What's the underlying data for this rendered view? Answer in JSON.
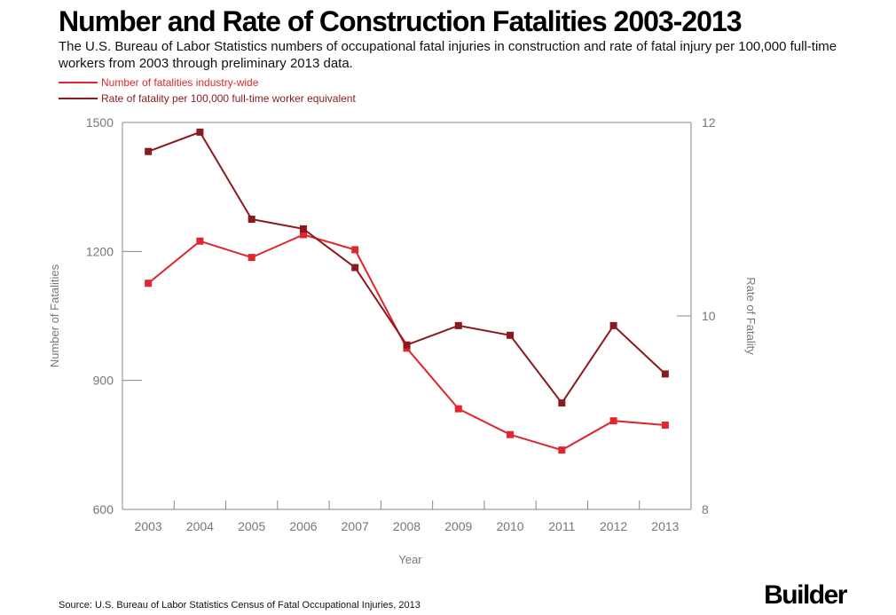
{
  "header": {
    "title": "Number and Rate of Construction Fatalities 2003-2013",
    "subtitle": "The U.S. Bureau of Labor Statistics numbers of occupational fatal injuries in construction and rate of fatal injury per 100,000 full-time workers from 2003 through preliminary 2013 data."
  },
  "footer": {
    "source": "Source: U.S. Bureau of Labor Statistics Census of Fatal Occupational Injuries, 2013",
    "logo": "Builder"
  },
  "colors": {
    "fatalities": "#e0262e",
    "rate": "#8b1a1e",
    "axis": "#888888",
    "text": "#777777"
  },
  "chart_data": {
    "type": "line",
    "categories": [
      "2003",
      "2004",
      "2005",
      "2006",
      "2007",
      "2008",
      "2009",
      "2010",
      "2011",
      "2012",
      "2013"
    ],
    "xlabel": "Year",
    "ylabel": "Number of Fatalities",
    "y2label": "Rate of Fatality",
    "ylim": [
      600,
      1500
    ],
    "y2lim": [
      8,
      12
    ],
    "yticks": [
      "600",
      "900",
      "1200",
      "1500"
    ],
    "y2ticks": [
      "8",
      "10",
      "12"
    ],
    "grid": false,
    "legend_position": "top-left",
    "series": [
      {
        "name": "Number of fatalities industry-wide",
        "axis": "left",
        "values": [
          1126,
          1224,
          1186,
          1239,
          1204,
          975,
          834,
          774,
          738,
          806,
          796
        ]
      },
      {
        "name": "Rate of fatality per 100,000 full-time worker equivalent",
        "axis": "right",
        "values": [
          11.7,
          11.9,
          11.0,
          10.9,
          10.5,
          9.7,
          9.9,
          9.8,
          9.1,
          9.9,
          9.4
        ]
      }
    ]
  }
}
